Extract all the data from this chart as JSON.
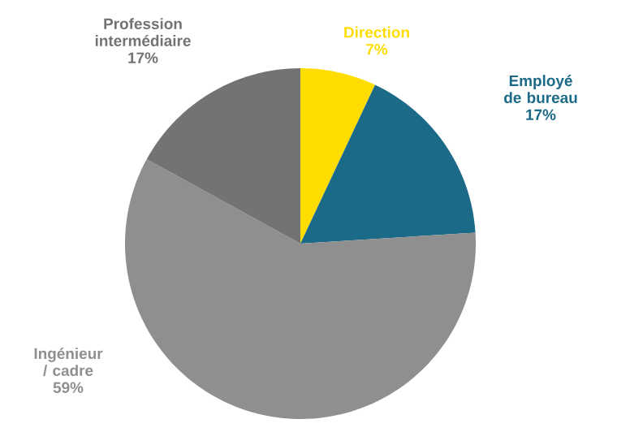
{
  "chart_data": {
    "type": "pie",
    "categories": [
      "Direction",
      "Employé de bureau",
      "Ingénieur / cadre",
      "Profession intermédiaire"
    ],
    "values": [
      7,
      17,
      59,
      17
    ],
    "value_labels": [
      "7%",
      "17%",
      "59%",
      "17%"
    ],
    "colors": [
      "#ffdd00",
      "#1b6a87",
      "#8f8f8f",
      "#737373"
    ],
    "legend": false
  }
}
